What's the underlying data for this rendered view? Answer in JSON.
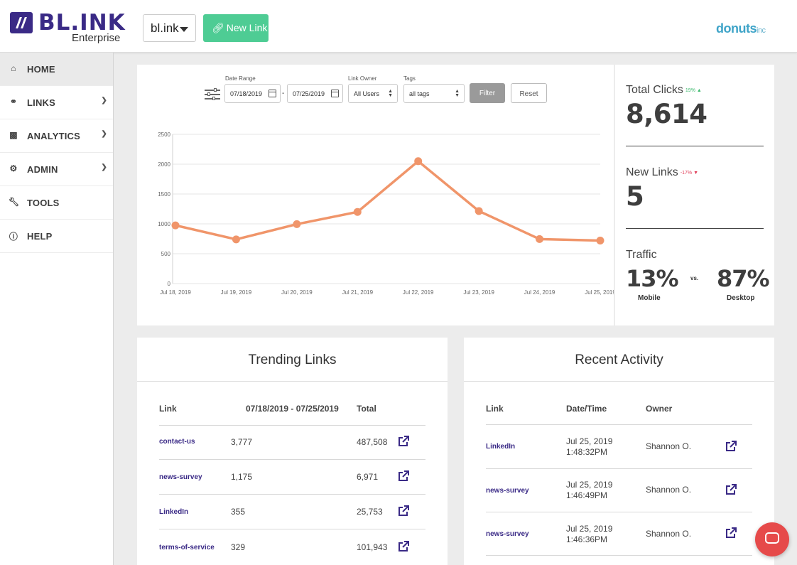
{
  "header": {
    "logo_text": "BL.INK",
    "logo_sub": "Enterprise",
    "domain": "bl.ink",
    "new_link_label": "New Link",
    "partner_logo": "donuts",
    "partner_logo_suffix": "inc",
    "colors": {
      "brand": "#3a2a86",
      "new_link_bg": "#4ecc94",
      "partner": "#3fa4c8"
    }
  },
  "sidebar": {
    "items": [
      {
        "label": "HOME",
        "icon": "home-icon",
        "active": true,
        "has_chevron": false
      },
      {
        "label": "LINKS",
        "icon": "link-icon",
        "active": false,
        "has_chevron": true
      },
      {
        "label": "ANALYTICS",
        "icon": "bar-chart-icon",
        "active": false,
        "has_chevron": true
      },
      {
        "label": "ADMIN",
        "icon": "gear-icon",
        "active": false,
        "has_chevron": true
      },
      {
        "label": "TOOLS",
        "icon": "wrench-icon",
        "active": false,
        "has_chevron": false
      },
      {
        "label": "HELP",
        "icon": "help-icon",
        "active": false,
        "has_chevron": false
      }
    ]
  },
  "filters": {
    "date_range_label": "Date Range",
    "date_from": "07/18/2019",
    "date_separator": "-",
    "date_to": "07/25/2019",
    "owner_label": "Link Owner",
    "owner_value": "All Users",
    "tags_label": "Tags",
    "tags_value": "all tags",
    "filter_label": "Filter",
    "reset_label": "Reset"
  },
  "chart_data": {
    "type": "line",
    "categories": [
      "Jul 18, 2019",
      "Jul 19, 2019",
      "Jul 20, 2019",
      "Jul 21, 2019",
      "Jul 22, 2019",
      "Jul 23, 2019",
      "Jul 24, 2019",
      "Jul 25, 2019"
    ],
    "values": [
      975,
      740,
      995,
      1200,
      2050,
      1215,
      745,
      720
    ],
    "yticks": [
      0,
      500,
      1000,
      1500,
      2000,
      2500
    ],
    "ylim": [
      0,
      2500
    ],
    "grid": true,
    "color": "#f0956a"
  },
  "stats": {
    "total_clicks_label": "Total Clicks",
    "total_clicks_delta": "19% ▲",
    "total_clicks_value": "8,614",
    "new_links_label": "New Links",
    "new_links_delta": "-17% ▼",
    "new_links_value": "5",
    "traffic_label": "Traffic",
    "mobile_pct": "13%",
    "mobile_label": "Mobile",
    "vs": "vs.",
    "desktop_pct": "87%",
    "desktop_label": "Desktop"
  },
  "trending": {
    "title": "Trending Links",
    "headers": {
      "link": "Link",
      "range": "07/18/2019 - 07/25/2019",
      "total": "Total"
    },
    "rows": [
      {
        "link": "contact-us",
        "range": "3,777",
        "total": "487,508"
      },
      {
        "link": "news-survey",
        "range": "1,175",
        "total": "6,971"
      },
      {
        "link": "LinkedIn",
        "range": "355",
        "total": "25,753"
      },
      {
        "link": "terms-of-service",
        "range": "329",
        "total": "101,943"
      }
    ]
  },
  "activity": {
    "title": "Recent Activity",
    "headers": {
      "link": "Link",
      "datetime": "Date/Time",
      "owner": "Owner"
    },
    "rows": [
      {
        "link": "LinkedIn",
        "date": "Jul 25, 2019",
        "time": "1:48:32PM",
        "owner": "Shannon O."
      },
      {
        "link": "news-survey",
        "date": "Jul 25, 2019",
        "time": "1:46:49PM",
        "owner": "Shannon O."
      },
      {
        "link": "news-survey",
        "date": "Jul 25, 2019",
        "time": "1:46:36PM",
        "owner": "Shannon O."
      }
    ]
  }
}
